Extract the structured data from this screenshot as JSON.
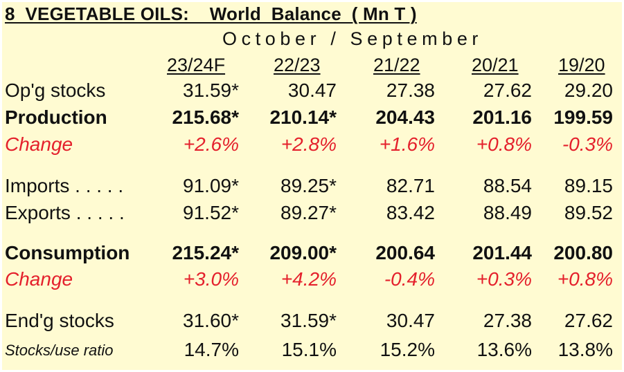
{
  "title": "8  VEGETABLE OILS:    World  Balance  ( Mn T )",
  "period": "October / September",
  "columns": [
    "23/24F",
    "22/23",
    "21/22",
    "20/21",
    "19/20"
  ],
  "rows": [
    {
      "label": "Op'g stocks",
      "style": "normal",
      "values": [
        "31.59*",
        "30.47",
        "27.38",
        "27.62",
        "29.20"
      ]
    },
    {
      "label": "Production",
      "style": "bold",
      "values": [
        "215.68*",
        "210.14*",
        "204.43",
        "201.16",
        "199.59"
      ]
    },
    {
      "label": "Change",
      "style": "red",
      "values": [
        "+2.6%",
        "+2.8%",
        "+1.6%",
        "+0.8%",
        "-0.3%"
      ]
    },
    {
      "label": "Imports  . . . . .",
      "style": "normal",
      "values": [
        "91.09*",
        "89.25*",
        "82.71",
        "88.54",
        "89.15"
      ]
    },
    {
      "label": "Exports  . . . . .",
      "style": "normal",
      "values": [
        "91.52*",
        "89.27*",
        "83.42",
        "88.49",
        "89.52"
      ]
    },
    {
      "label": "Consumption",
      "style": "bold",
      "values": [
        "215.24*",
        "209.00*",
        "200.64",
        "201.44",
        "200.80"
      ]
    },
    {
      "label": "Change",
      "style": "red",
      "values": [
        "+3.0%",
        "+4.2%",
        "-0.4%",
        "+0.3%",
        "+0.8%"
      ]
    },
    {
      "label": "End'g stocks",
      "style": "normal",
      "values": [
        "31.60*",
        "31.59*",
        "30.47",
        "27.38",
        "27.62"
      ]
    },
    {
      "label": "Stocks/use ratio",
      "style": "small",
      "values": [
        "14.7%",
        "15.1%",
        "15.2%",
        "13.6%",
        "13.8%"
      ]
    }
  ]
}
